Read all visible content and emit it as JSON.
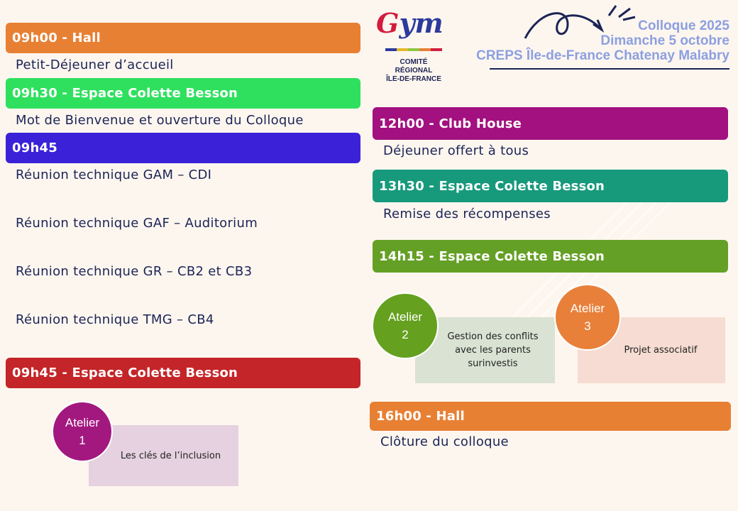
{
  "header": {
    "logo_word": "Gym",
    "org_lines": [
      "COMITÉ",
      "RÉGIONAL",
      "ÎLE-DE-FRANCE"
    ],
    "title_lines": [
      "Colloque 2025",
      "Dimanche 5 octobre",
      "CREPS Île-de-France Chatenay Malabry"
    ]
  },
  "left": {
    "hall": {
      "time": "09h00 - Hall",
      "text": "Petit-Déjeuner d’accueil",
      "color": "#e88034"
    },
    "welcome": {
      "time": "09h30 - Espace Colette Besson",
      "text": "Mot de Bienvenue et ouverture du Colloque",
      "color": "#2fe05e"
    },
    "technical": {
      "time": "09h45",
      "color": "#3b22d8",
      "items": [
        "Réunion technique GAM – CDI",
        "Réunion technique GAF – Auditorium",
        "Réunion technique GR – CB2 et CB3",
        "Réunion technique TMG – CB4"
      ]
    },
    "workshop_block": {
      "time": "09h45 - Espace Colette Besson",
      "color": "#c42528"
    },
    "atelier1": {
      "label": "Atelier",
      "num": "1",
      "text": "Les clés de l’inclusion",
      "circle_color": "#a3187f",
      "box_color": "#e5d1df"
    }
  },
  "right": {
    "lunch": {
      "time": "12h00 - Club House",
      "text": "Déjeuner offert à tous",
      "color": "#a3107f"
    },
    "awards": {
      "time": "13h30 - Espace Colette Besson",
      "text": "Remise des récompenses",
      "color": "#17997c"
    },
    "workshops": {
      "time": "14h15 - Espace Colette Besson",
      "color": "#64a025"
    },
    "atelier2": {
      "label": "Atelier",
      "num": "2",
      "text_lines": [
        "Gestion des conflits",
        "avec les parents",
        "surinvestis"
      ],
      "circle_color": "#65a01f",
      "box_color": "#dae2d3"
    },
    "atelier3": {
      "label": "Atelier",
      "num": "3",
      "text": "Projet associatif",
      "circle_color": "#e8803a",
      "box_color": "#f6dcd2"
    },
    "closing": {
      "time": "16h00 - Hall",
      "text": "Clôture du colloque",
      "color": "#e88034"
    }
  }
}
